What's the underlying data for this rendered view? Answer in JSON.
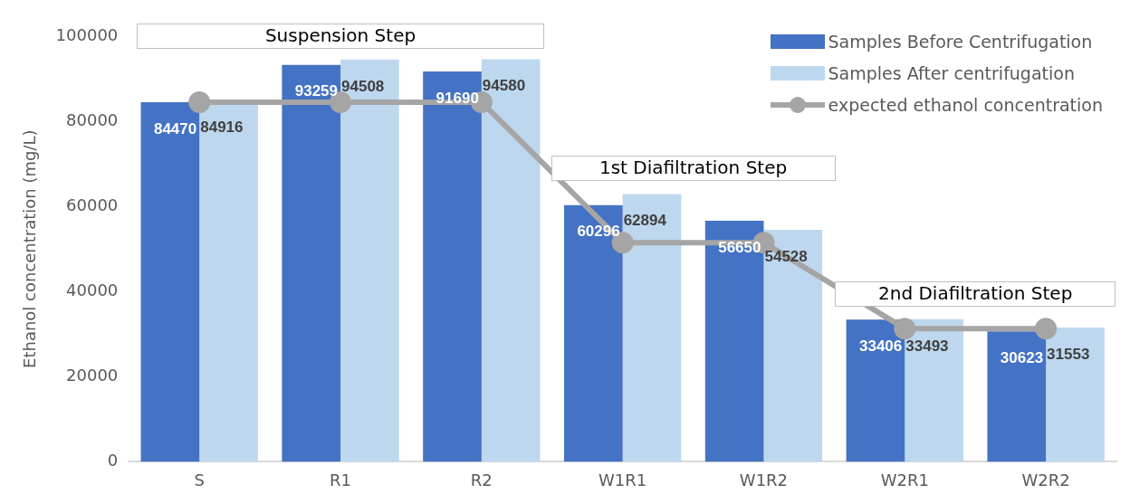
{
  "chart_data": {
    "type": "bar",
    "ylabel": "Ethanol concentration (mg/L)",
    "categories": [
      "S",
      "R1",
      "R2",
      "W1R1",
      "W1R2",
      "W2R1",
      "W2R2"
    ],
    "series": [
      {
        "name": "Samples Before Centrifugation",
        "color": "#4472c4",
        "values": [
          84470,
          93259,
          91690,
          60296,
          56650,
          33406,
          30623
        ],
        "value_labels": [
          "84470",
          "93259",
          "91690",
          "60296",
          "56650",
          "33406",
          "30623"
        ]
      },
      {
        "name": "Samples After centrifugation",
        "color": "#bdd7ee",
        "values": [
          84916,
          94508,
          94580,
          62894,
          54528,
          33493,
          31553
        ],
        "value_labels": [
          "84916",
          "94508",
          "94580",
          "62894",
          "54528",
          "33493",
          "31553"
        ]
      },
      {
        "name": "expected ethanol concentration",
        "type": "line",
        "color": "#a5a5a5",
        "marker": "circle",
        "values": [
          84500,
          84500,
          84500,
          51500,
          51500,
          31300,
          31300
        ]
      }
    ],
    "annotations": [
      "Suspension Step",
      "1st Diafiltration Step",
      "2nd Diafiltration Step"
    ],
    "ylim": [
      0,
      100000
    ],
    "yticks": [
      0,
      20000,
      40000,
      60000,
      80000,
      100000
    ],
    "grid": false,
    "legend": "top right"
  }
}
